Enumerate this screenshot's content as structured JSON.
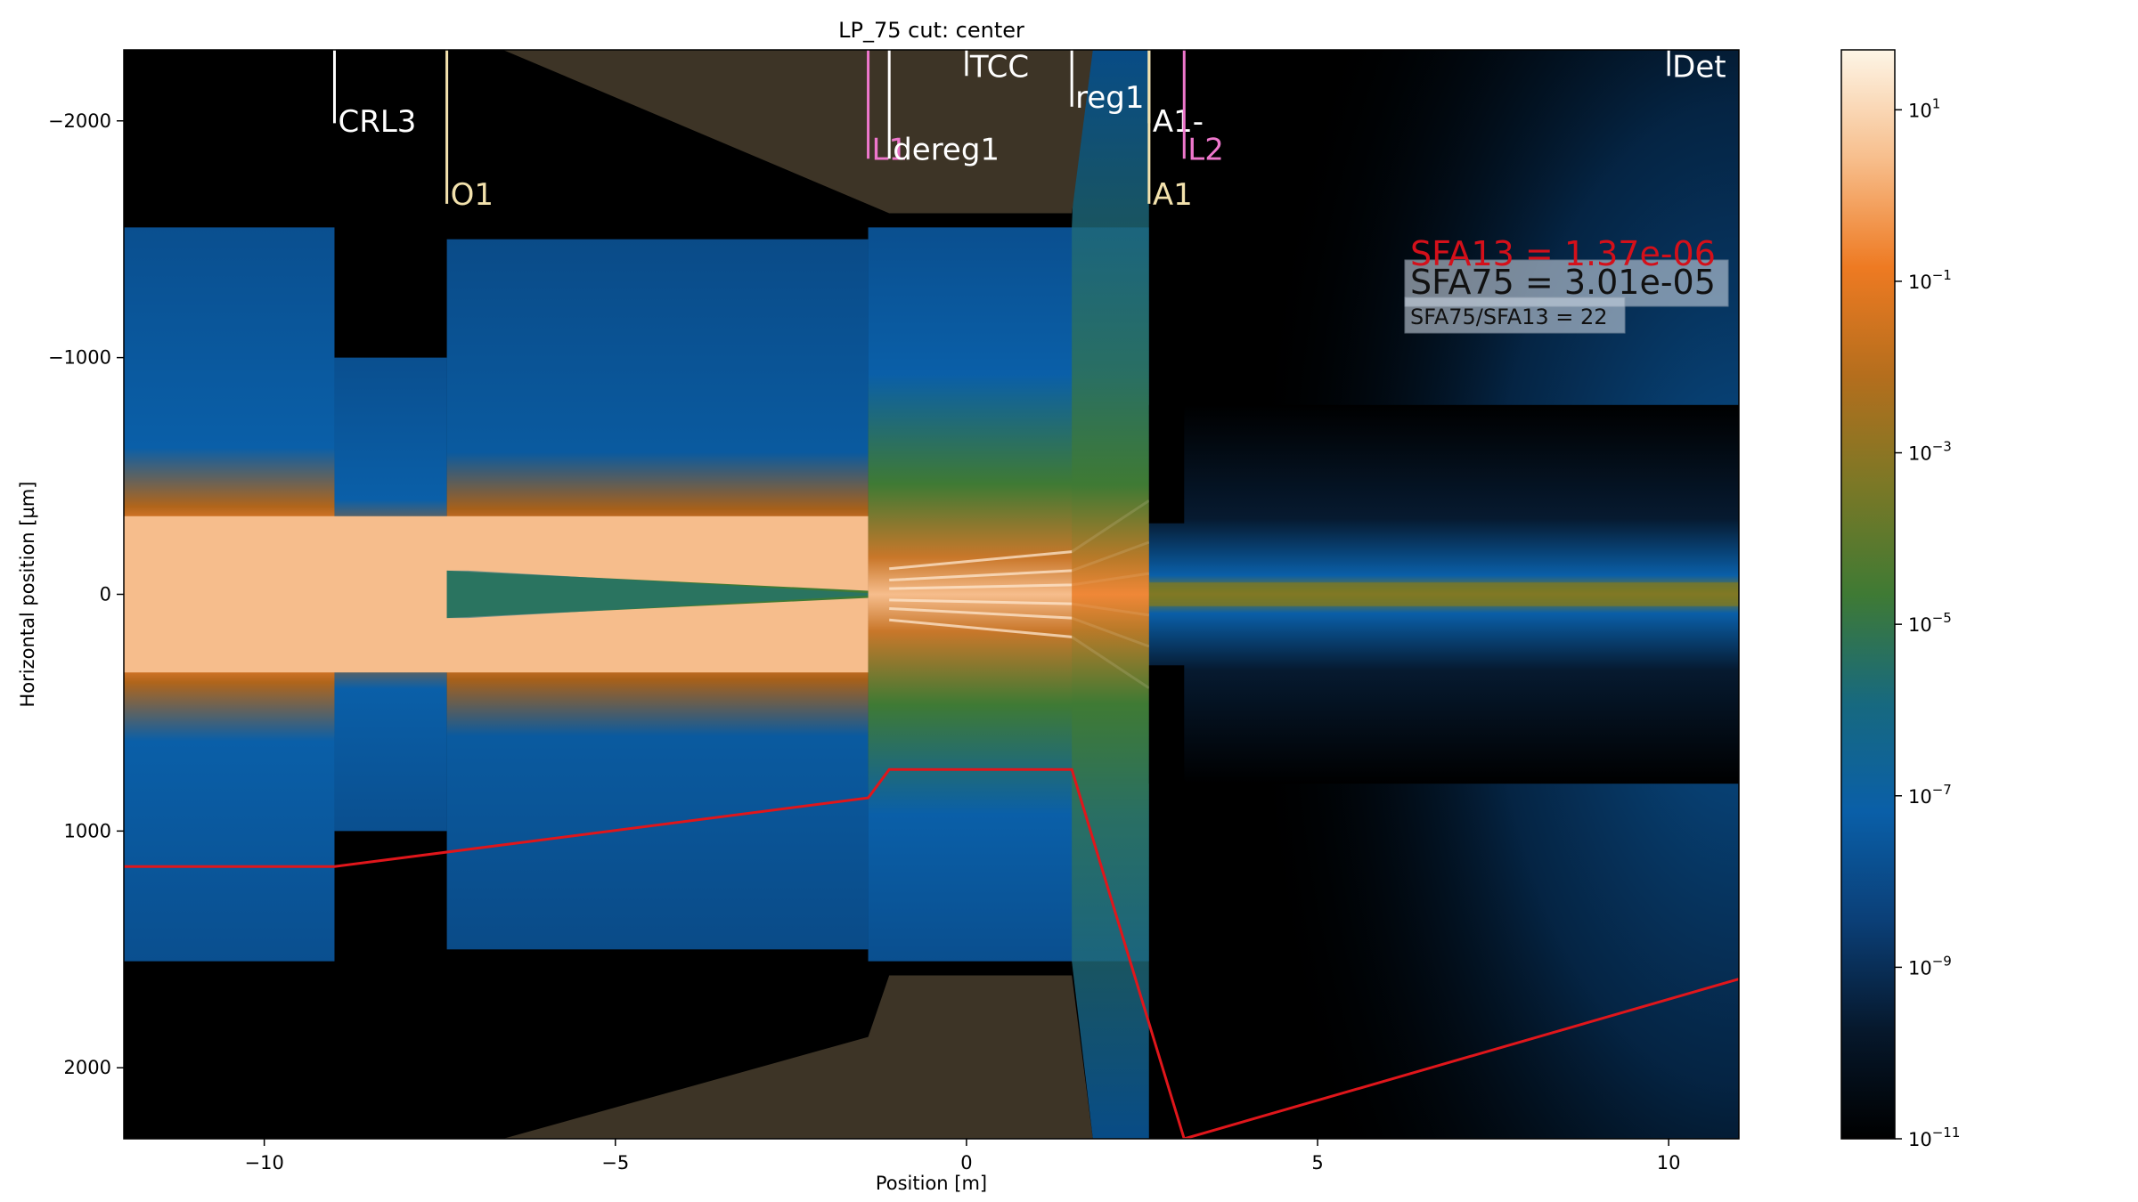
{
  "chart_data": {
    "type": "heatmap",
    "title": "LP_75 cut: center",
    "xlabel": "Position [m]",
    "ylabel": "Horizontal position [µm]",
    "xlim": [
      -12.0,
      11.0
    ],
    "ylim": [
      2300,
      -2300
    ],
    "x_ticks": [
      {
        "value": -10,
        "label": "−10"
      },
      {
        "value": -5,
        "label": "−5"
      },
      {
        "value": 0,
        "label": "0"
      },
      {
        "value": 5,
        "label": "5"
      },
      {
        "value": 10,
        "label": "10"
      }
    ],
    "y_ticks": [
      {
        "value": -2000,
        "label": "−2000"
      },
      {
        "value": -1000,
        "label": "−1000"
      },
      {
        "value": 0,
        "label": "0"
      },
      {
        "value": 1000,
        "label": "1000"
      },
      {
        "value": 2000,
        "label": "2000"
      }
    ],
    "colorbar": {
      "scale": "log",
      "range": [
        1e-11,
        50
      ],
      "ticks": [
        {
          "exp": 1,
          "base": "10",
          "sup": "1"
        },
        {
          "exp": -1,
          "base": "10",
          "sup": "−1"
        },
        {
          "exp": -3,
          "base": "10",
          "sup": "−3"
        },
        {
          "exp": -5,
          "base": "10",
          "sup": "−5"
        },
        {
          "exp": -7,
          "base": "10",
          "sup": "−7"
        },
        {
          "exp": -9,
          "base": "10",
          "sup": "−9"
        },
        {
          "exp": -11,
          "base": "10",
          "sup": "−11"
        }
      ],
      "colors": [
        "#000000",
        "#0b2a4a",
        "#0a5fa8",
        "#1a6e86",
        "#4a7f2e",
        "#8a7a22",
        "#c26a1c",
        "#ef7a22",
        "#f6b884",
        "#fdf4e3"
      ]
    },
    "elements": [
      {
        "name": "CRL3",
        "x": -9.0,
        "y_top": -2300,
        "y_bottom": -1990,
        "label": "CRL3",
        "color": "#ffffff",
        "label_y": -2000
      },
      {
        "name": "O1",
        "x": -7.4,
        "y_top": -2300,
        "y_bottom": -1650,
        "label": "O1",
        "color": "#f3e2ad",
        "label_y": -1690
      },
      {
        "name": "L1",
        "x": -1.4,
        "y_top": -2300,
        "y_bottom": -1840,
        "label": "L1",
        "color": "#ee77cc",
        "label_y": -1880
      },
      {
        "name": "dereg1",
        "x": -1.1,
        "y_top": -2300,
        "y_bottom": -1840,
        "label": "dereg1",
        "color": "#ffffff",
        "label_y": -1880
      },
      {
        "name": "TCC",
        "x": 0.0,
        "y_top": -2300,
        "y_bottom": -2190,
        "label": "TCC",
        "color": "#ffffff",
        "label_y": -2230
      },
      {
        "name": "reg1",
        "x": 1.5,
        "y_top": -2300,
        "y_bottom": -2060,
        "label": "reg1",
        "color": "#ffffff",
        "label_y": -2100
      },
      {
        "name": "A1-",
        "x": 2.6,
        "y_top": -2300,
        "y_bottom": -1990,
        "label": "A1-",
        "color": "#ffffff",
        "label_y": -2000
      },
      {
        "name": "L2",
        "x": 3.1,
        "y_top": -2300,
        "y_bottom": -1840,
        "label": "L2",
        "color": "#ee77cc",
        "label_y": -1880
      },
      {
        "name": "A1",
        "x": 2.6,
        "y_top": -2300,
        "y_bottom": -1650,
        "label": "A1",
        "color": "#f3e2ad",
        "label_y": -1690
      },
      {
        "name": "Det",
        "x": 10.0,
        "y_top": -2300,
        "y_bottom": -2190,
        "label": "Det",
        "color": "#ffffff",
        "label_y": -2230
      }
    ],
    "red_profile": {
      "color": "#e0161b",
      "x": [
        -12.0,
        -9.0,
        -1.4,
        -1.1,
        1.5,
        3.1,
        11.0
      ],
      "y": [
        1150,
        1150,
        860,
        740,
        740,
        2300,
        1625
      ]
    },
    "annotations": [
      {
        "text": "SFA13 = 1.37e-06",
        "color": "#d4101a",
        "size": "large"
      },
      {
        "text": "SFA75 = 3.01e-05",
        "color": "#111111",
        "size": "large",
        "boxed": true
      },
      {
        "text": "SFA75/SFA13 = 22",
        "color": "#111111",
        "size": "small",
        "boxed": true
      }
    ]
  }
}
